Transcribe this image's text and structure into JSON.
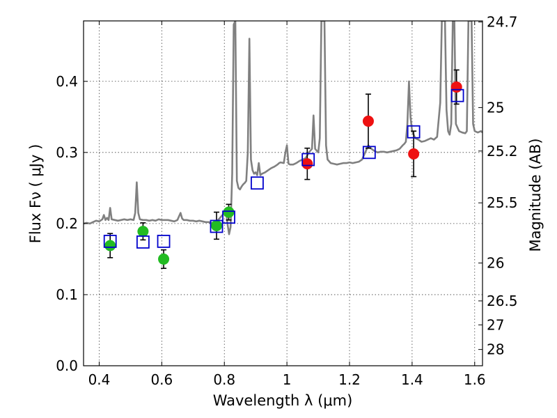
{
  "chart_data": {
    "type": "scatter",
    "title": "",
    "xlabel": "Wavelength  λ (μm)",
    "ylabel": "Flux  Fν  ( μJy )",
    "y2label": "Magnitude (AB)",
    "xlim": [
      0.35,
      1.625
    ],
    "ylim": [
      0.0,
      0.485
    ],
    "grid": true,
    "colors": {
      "spectrum": "#808080",
      "model_marker": "#0000cc",
      "green_points": "#22bb22",
      "red_points": "#ee1111",
      "errorbar": "#000000"
    },
    "x_ticks": [
      {
        "value": 0.4,
        "label": "0.4"
      },
      {
        "value": 0.6,
        "label": "0.6"
      },
      {
        "value": 0.8,
        "label": "0.8"
      },
      {
        "value": 1.0,
        "label": "1"
      },
      {
        "value": 1.2,
        "label": "1.2"
      },
      {
        "value": 1.4,
        "label": "1.4"
      },
      {
        "value": 1.6,
        "label": "1.6"
      }
    ],
    "y_ticks": [
      {
        "value": 0.0,
        "label": "0.0"
      },
      {
        "value": 0.1,
        "label": "0.1"
      },
      {
        "value": 0.2,
        "label": "0.2"
      },
      {
        "value": 0.3,
        "label": "0.3"
      },
      {
        "value": 0.4,
        "label": "0.4"
      }
    ],
    "y2_ticks": [
      {
        "flux": 0.4835,
        "label": "24.7"
      },
      {
        "flux": 0.3631,
        "label": "25"
      },
      {
        "flux": 0.302,
        "label": "25.2"
      },
      {
        "flux": 0.2291,
        "label": "25.5"
      },
      {
        "flux": 0.1445,
        "label": "26"
      },
      {
        "flux": 0.0912,
        "label": "26.5"
      },
      {
        "flux": 0.0575,
        "label": "27"
      },
      {
        "flux": 0.0229,
        "label": "28"
      }
    ],
    "spectrum": {
      "name": "model spectrum",
      "points": [
        [
          0.35,
          0.2
        ],
        [
          0.36,
          0.201
        ],
        [
          0.37,
          0.2
        ],
        [
          0.38,
          0.202
        ],
        [
          0.39,
          0.204
        ],
        [
          0.4,
          0.203
        ],
        [
          0.41,
          0.206
        ],
        [
          0.415,
          0.212
        ],
        [
          0.42,
          0.205
        ],
        [
          0.425,
          0.208
        ],
        [
          0.43,
          0.205
        ],
        [
          0.435,
          0.222
        ],
        [
          0.44,
          0.206
        ],
        [
          0.45,
          0.205
        ],
        [
          0.46,
          0.204
        ],
        [
          0.47,
          0.205
        ],
        [
          0.48,
          0.206
        ],
        [
          0.49,
          0.205
        ],
        [
          0.5,
          0.206
        ],
        [
          0.51,
          0.205
        ],
        [
          0.515,
          0.215
        ],
        [
          0.52,
          0.258
        ],
        [
          0.525,
          0.215
        ],
        [
          0.53,
          0.206
        ],
        [
          0.54,
          0.205
        ],
        [
          0.55,
          0.205
        ],
        [
          0.56,
          0.204
        ],
        [
          0.57,
          0.205
        ],
        [
          0.58,
          0.204
        ],
        [
          0.59,
          0.206
        ],
        [
          0.6,
          0.205
        ],
        [
          0.61,
          0.205
        ],
        [
          0.62,
          0.205
        ],
        [
          0.63,
          0.204
        ],
        [
          0.64,
          0.203
        ],
        [
          0.65,
          0.205
        ],
        [
          0.66,
          0.215
        ],
        [
          0.665,
          0.207
        ],
        [
          0.67,
          0.205
        ],
        [
          0.68,
          0.205
        ],
        [
          0.69,
          0.204
        ],
        [
          0.7,
          0.204
        ],
        [
          0.71,
          0.203
        ],
        [
          0.72,
          0.204
        ],
        [
          0.73,
          0.203
        ],
        [
          0.74,
          0.202
        ],
        [
          0.75,
          0.202
        ],
        [
          0.76,
          0.201
        ],
        [
          0.77,
          0.2
        ],
        [
          0.78,
          0.205
        ],
        [
          0.79,
          0.21
        ],
        [
          0.8,
          0.215
        ],
        [
          0.805,
          0.22
        ],
        [
          0.81,
          0.2
        ],
        [
          0.815,
          0.185
        ],
        [
          0.82,
          0.195
        ],
        [
          0.825,
          0.27
        ],
        [
          0.83,
          0.48
        ],
        [
          0.835,
          0.485
        ],
        [
          0.84,
          0.26
        ],
        [
          0.845,
          0.25
        ],
        [
          0.85,
          0.248
        ],
        [
          0.855,
          0.252
        ],
        [
          0.86,
          0.255
        ],
        [
          0.865,
          0.257
        ],
        [
          0.87,
          0.26
        ],
        [
          0.875,
          0.3
        ],
        [
          0.88,
          0.46
        ],
        [
          0.885,
          0.29
        ],
        [
          0.89,
          0.275
        ],
        [
          0.895,
          0.27
        ],
        [
          0.9,
          0.272
        ],
        [
          0.905,
          0.268
        ],
        [
          0.91,
          0.285
        ],
        [
          0.915,
          0.268
        ],
        [
          0.92,
          0.27
        ],
        [
          0.93,
          0.272
        ],
        [
          0.94,
          0.275
        ],
        [
          0.95,
          0.278
        ],
        [
          0.96,
          0.28
        ],
        [
          0.97,
          0.283
        ],
        [
          0.975,
          0.285
        ],
        [
          0.98,
          0.286
        ],
        [
          0.99,
          0.285
        ],
        [
          0.995,
          0.3
        ],
        [
          1.0,
          0.31
        ],
        [
          1.005,
          0.284
        ],
        [
          1.01,
          0.283
        ],
        [
          1.02,
          0.283
        ],
        [
          1.03,
          0.285
        ],
        [
          1.04,
          0.288
        ],
        [
          1.05,
          0.29
        ],
        [
          1.06,
          0.292
        ],
        [
          1.07,
          0.3
        ],
        [
          1.08,
          0.305
        ],
        [
          1.085,
          0.352
        ],
        [
          1.09,
          0.305
        ],
        [
          1.1,
          0.3
        ],
        [
          1.105,
          0.32
        ],
        [
          1.11,
          0.485
        ],
        [
          1.12,
          0.485
        ],
        [
          1.125,
          0.31
        ],
        [
          1.13,
          0.29
        ],
        [
          1.14,
          0.285
        ],
        [
          1.15,
          0.284
        ],
        [
          1.16,
          0.283
        ],
        [
          1.17,
          0.284
        ],
        [
          1.18,
          0.285
        ],
        [
          1.19,
          0.285
        ],
        [
          1.2,
          0.286
        ],
        [
          1.21,
          0.285
        ],
        [
          1.22,
          0.286
        ],
        [
          1.23,
          0.287
        ],
        [
          1.24,
          0.29
        ],
        [
          1.25,
          0.3
        ],
        [
          1.26,
          0.31
        ],
        [
          1.27,
          0.305
        ],
        [
          1.28,
          0.302
        ],
        [
          1.29,
          0.3
        ],
        [
          1.3,
          0.301
        ],
        [
          1.31,
          0.301
        ],
        [
          1.32,
          0.3
        ],
        [
          1.33,
          0.301
        ],
        [
          1.34,
          0.302
        ],
        [
          1.35,
          0.303
        ],
        [
          1.36,
          0.305
        ],
        [
          1.37,
          0.31
        ],
        [
          1.375,
          0.312
        ],
        [
          1.38,
          0.315
        ],
        [
          1.385,
          0.34
        ],
        [
          1.39,
          0.4
        ],
        [
          1.395,
          0.35
        ],
        [
          1.4,
          0.33
        ],
        [
          1.41,
          0.32
        ],
        [
          1.42,
          0.318
        ],
        [
          1.43,
          0.315
        ],
        [
          1.44,
          0.316
        ],
        [
          1.45,
          0.318
        ],
        [
          1.46,
          0.32
        ],
        [
          1.47,
          0.318
        ],
        [
          1.48,
          0.322
        ],
        [
          1.49,
          0.37
        ],
        [
          1.495,
          0.485
        ],
        [
          1.505,
          0.485
        ],
        [
          1.51,
          0.36
        ],
        [
          1.515,
          0.33
        ],
        [
          1.52,
          0.325
        ],
        [
          1.525,
          0.34
        ],
        [
          1.53,
          0.485
        ],
        [
          1.535,
          0.485
        ],
        [
          1.54,
          0.34
        ],
        [
          1.55,
          0.33
        ],
        [
          1.56,
          0.328
        ],
        [
          1.57,
          0.327
        ],
        [
          1.575,
          0.33
        ],
        [
          1.58,
          0.485
        ],
        [
          1.59,
          0.485
        ],
        [
          1.595,
          0.34
        ],
        [
          1.6,
          0.33
        ],
        [
          1.61,
          0.328
        ],
        [
          1.62,
          0.33
        ],
        [
          1.625,
          0.328
        ]
      ]
    },
    "model_photometry": {
      "name": "model fluxes",
      "marker": "open-square",
      "points": [
        {
          "x": 0.435,
          "y": 0.175
        },
        {
          "x": 0.54,
          "y": 0.174
        },
        {
          "x": 0.606,
          "y": 0.175
        },
        {
          "x": 0.775,
          "y": 0.196
        },
        {
          "x": 0.814,
          "y": 0.209
        },
        {
          "x": 0.905,
          "y": 0.257
        },
        {
          "x": 1.068,
          "y": 0.29
        },
        {
          "x": 1.263,
          "y": 0.3
        },
        {
          "x": 1.405,
          "y": 0.329
        },
        {
          "x": 1.545,
          "y": 0.38
        }
      ]
    },
    "observed_optical": {
      "name": "optical photometry",
      "marker": "filled-circle",
      "points": [
        {
          "x": 0.435,
          "y": 0.169,
          "err": 0.017
        },
        {
          "x": 0.54,
          "y": 0.189,
          "err": 0.012
        },
        {
          "x": 0.606,
          "y": 0.15,
          "err": 0.013
        },
        {
          "x": 0.775,
          "y": 0.197,
          "err": 0.019
        },
        {
          "x": 0.814,
          "y": 0.216,
          "err": 0.011
        }
      ]
    },
    "observed_nir": {
      "name": "near-infrared photometry",
      "marker": "filled-circle",
      "points": [
        {
          "x": 1.065,
          "y": 0.284,
          "err": 0.022
        },
        {
          "x": 1.26,
          "y": 0.344,
          "err": 0.038
        },
        {
          "x": 1.405,
          "y": 0.298,
          "err": 0.032
        },
        {
          "x": 1.542,
          "y": 0.392,
          "err": 0.024
        }
      ]
    }
  }
}
